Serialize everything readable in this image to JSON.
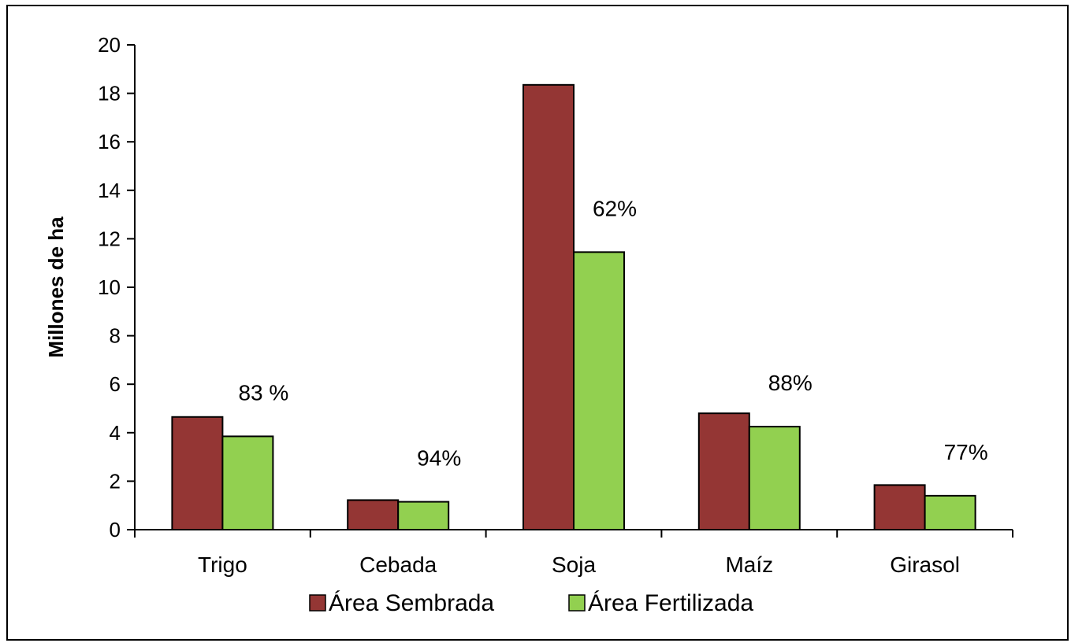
{
  "chart_data": {
    "type": "bar",
    "ylabel": "Millones de ha",
    "ylim": [
      0,
      20
    ],
    "yticks": [
      0,
      2,
      4,
      6,
      8,
      10,
      12,
      14,
      16,
      18,
      20
    ],
    "categories": [
      "Trigo",
      "Cebada",
      "Soja",
      "Maíz",
      "Girasol"
    ],
    "series": [
      {
        "name": "Área Sembrada",
        "color": "#943634",
        "values": [
          4.65,
          1.22,
          18.35,
          4.8,
          1.84
        ]
      },
      {
        "name": "Área Fertilizada",
        "color": "#92d050",
        "values": [
          3.85,
          1.15,
          11.45,
          4.25,
          1.4
        ]
      }
    ],
    "data_labels": [
      "83 %",
      "94%",
      "62%",
      "88%",
      "77%"
    ],
    "legend_position": "bottom",
    "grid": false
  }
}
